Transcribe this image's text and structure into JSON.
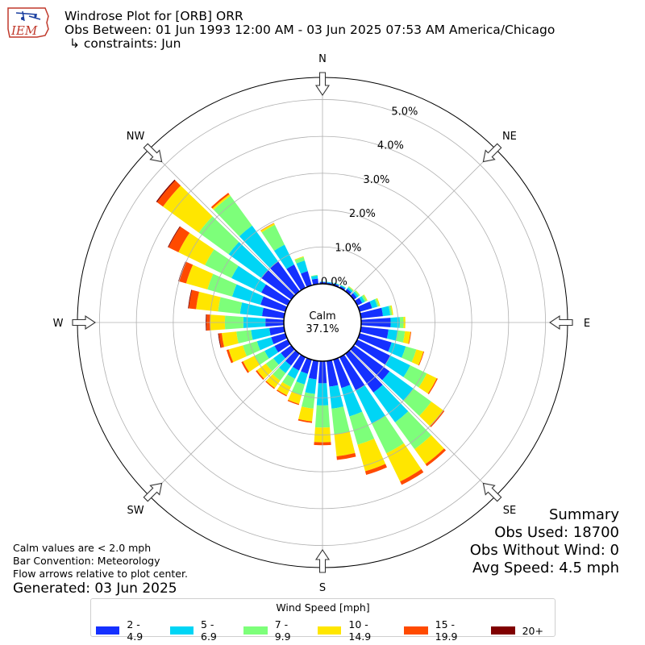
{
  "header": {
    "title": "Windrose Plot for [ORB] ORR",
    "obs_between": "Obs Between: 01 Jun 1993 12:00 AM - 03 Jun 2025 07:53 AM America/Chicago",
    "constraints": "↳ constraints: Jun",
    "logo_text": "IEM"
  },
  "notes": {
    "calm_note": "Calm values are < 2.0 mph",
    "bar_convention": "Bar Convention: Meteorology",
    "flow_arrows": "Flow arrows relative to plot center.",
    "generated": "Generated: 03 Jun 2025"
  },
  "summary": {
    "title": "Summary",
    "obs_used": "Obs Used: 18700",
    "obs_without_wind": "Obs Without Wind: 0",
    "avg_speed": "Avg Speed: 4.5 mph"
  },
  "legend": {
    "title": "Wind Speed [mph]",
    "items": [
      {
        "label": "2 - 4.9",
        "color": "#1530ff"
      },
      {
        "label": "5 - 6.9",
        "color": "#00d5f5"
      },
      {
        "label": "7 - 9.9",
        "color": "#7dff7a"
      },
      {
        "label": "10 - 14.9",
        "color": "#ffe600"
      },
      {
        "label": "15 - 19.9",
        "color": "#ff4a00"
      },
      {
        "label": "20+",
        "color": "#800000"
      }
    ]
  },
  "chart_data": {
    "type": "windrose",
    "center_label": "Calm",
    "calm_percent": "37.1%",
    "radial_ticks": [
      "0.0%",
      "1.0%",
      "2.0%",
      "3.0%",
      "4.0%",
      "5.0%"
    ],
    "radial_values": [
      0,
      1,
      2,
      3,
      4,
      5
    ],
    "rmax": 5.6,
    "directions_labels": [
      "N",
      "NE",
      "E",
      "SE",
      "S",
      "SW",
      "W",
      "NW"
    ],
    "speed_bins": [
      "2 - 4.9",
      "5 - 6.9",
      "7 - 9.9",
      "10 - 14.9",
      "15 - 19.9",
      "20+"
    ],
    "directions": [
      0,
      10,
      20,
      30,
      40,
      50,
      60,
      70,
      80,
      90,
      100,
      110,
      120,
      130,
      140,
      150,
      160,
      170,
      180,
      190,
      200,
      210,
      220,
      230,
      240,
      250,
      260,
      270,
      280,
      290,
      300,
      310,
      320,
      330,
      340,
      350
    ],
    "values": [
      [
        0.05,
        0.01,
        0,
        0,
        0,
        0
      ],
      [
        0.04,
        0.02,
        0,
        0,
        0,
        0
      ],
      [
        0.05,
        0.02,
        0.01,
        0,
        0,
        0
      ],
      [
        0.05,
        0.03,
        0.01,
        0,
        0,
        0
      ],
      [
        0.08,
        0.05,
        0.03,
        0.01,
        0,
        0
      ],
      [
        0.1,
        0.06,
        0.04,
        0.01,
        0,
        0
      ],
      [
        0.15,
        0.08,
        0.06,
        0.02,
        0,
        0
      ],
      [
        0.35,
        0.15,
        0.05,
        0.03,
        0,
        0
      ],
      [
        0.6,
        0.2,
        0.05,
        0.03,
        0,
        0
      ],
      [
        0.8,
        0.25,
        0.1,
        0.05,
        0,
        0
      ],
      [
        0.75,
        0.25,
        0.2,
        0.15,
        0.02,
        0
      ],
      [
        0.9,
        0.4,
        0.3,
        0.2,
        0.02,
        0
      ],
      [
        1.0,
        0.6,
        0.5,
        0.3,
        0.03,
        0
      ],
      [
        1.2,
        0.8,
        0.6,
        0.4,
        0.04,
        0
      ],
      [
        1.3,
        1.0,
        0.9,
        0.5,
        0.07,
        0
      ],
      [
        1.0,
        1.0,
        0.9,
        0.85,
        0.1,
        0
      ],
      [
        0.8,
        0.8,
        0.8,
        0.75,
        0.1,
        0
      ],
      [
        0.7,
        0.6,
        0.7,
        0.6,
        0.1,
        0
      ],
      [
        0.6,
        0.6,
        0.6,
        0.4,
        0.08,
        0
      ],
      [
        0.5,
        0.4,
        0.4,
        0.35,
        0.04,
        0
      ],
      [
        0.4,
        0.3,
        0.3,
        0.25,
        0.03,
        0
      ],
      [
        0.4,
        0.25,
        0.25,
        0.25,
        0.03,
        0
      ],
      [
        0.4,
        0.25,
        0.25,
        0.25,
        0.03,
        0
      ],
      [
        0.35,
        0.25,
        0.25,
        0.3,
        0.04,
        0
      ],
      [
        0.4,
        0.3,
        0.3,
        0.35,
        0.05,
        0
      ],
      [
        0.4,
        0.4,
        0.4,
        0.4,
        0.06,
        0
      ],
      [
        0.4,
        0.5,
        0.4,
        0.4,
        0.08,
        0.02
      ],
      [
        0.5,
        0.6,
        0.5,
        0.4,
        0.1,
        0.02
      ],
      [
        0.6,
        0.6,
        0.6,
        0.6,
        0.2,
        0.02
      ],
      [
        0.7,
        0.8,
        0.7,
        0.6,
        0.2,
        0.02
      ],
      [
        0.8,
        0.9,
        0.8,
        0.8,
        0.3,
        0.02
      ],
      [
        1.0,
        1.1,
        1.0,
        1.2,
        0.2,
        0.03
      ],
      [
        1.0,
        1.2,
        1.0,
        0.05,
        0.05,
        0
      ],
      [
        0.7,
        0.6,
        0.6,
        0.05,
        0.01,
        0
      ],
      [
        0.4,
        0.3,
        0.1,
        0.02,
        0,
        0
      ],
      [
        0.15,
        0.08,
        0.02,
        0,
        0,
        0
      ]
    ]
  }
}
